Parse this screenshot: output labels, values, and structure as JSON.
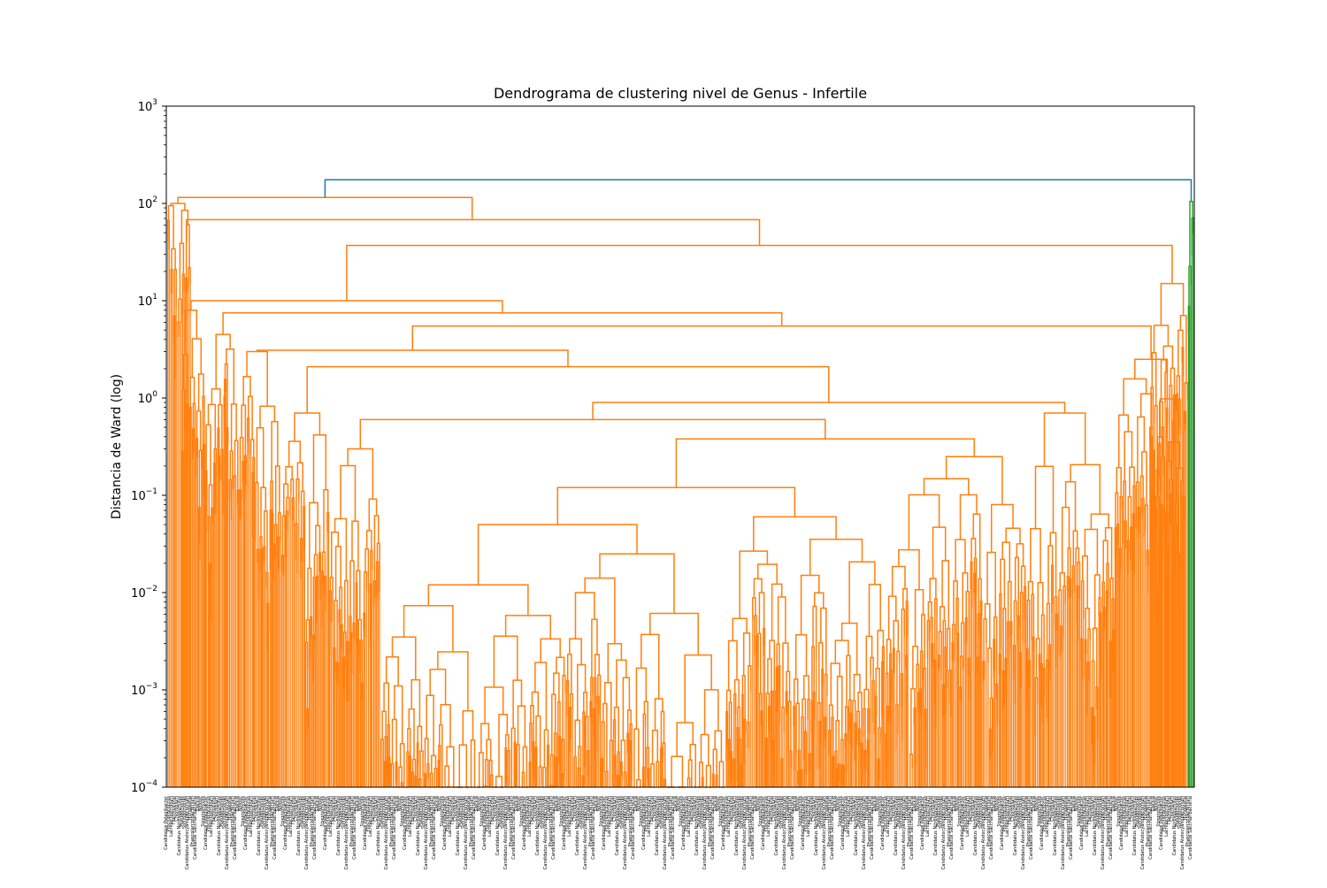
{
  "chart_data": {
    "type": "dendrogram",
    "title": "Dendrograma de clustering nivel de Genus - Infertile",
    "xlabel": "",
    "ylabel": "Distancia de Ward (log)",
    "yscale": "log",
    "ylim": [
      0.0001,
      1000
    ],
    "yticks": [
      {
        "value": 0.0001,
        "base": "10",
        "exp": "−4"
      },
      {
        "value": 0.001,
        "base": "10",
        "exp": "−3"
      },
      {
        "value": 0.01,
        "base": "10",
        "exp": "−2"
      },
      {
        "value": 0.1,
        "base": "10",
        "exp": "−1"
      },
      {
        "value": 1,
        "base": "10",
        "exp": "0"
      },
      {
        "value": 10,
        "base": "10",
        "exp": "1"
      },
      {
        "value": 100,
        "base": "10",
        "exp": "2"
      },
      {
        "value": 1000,
        "base": "10",
        "exp": "3"
      }
    ],
    "grid": false,
    "colors": {
      "main_cluster": "#ff7f0e",
      "second_cluster": "#2ca02c",
      "above_threshold": "#1f77b4"
    },
    "x_tick_labels": [
      "Candidatus Pelagibacter",
      "Prochlorococcus",
      "Lachnoclostridium",
      "Thermosipho",
      "Chlorobium",
      "Candidatus Nitrosopumilus",
      "Pseudomonas",
      "Sphingomonas",
      "Candidatus Atelocyanobacterium",
      "Hungatella",
      "Phascolarctobacterium",
      "Candidatus Saccharibacteria",
      "Slackia",
      "Nostoc",
      "Streptomyces"
    ],
    "root": {
      "height": 175
    },
    "merges": [
      {
        "name": "top-orange-merge",
        "height": 115,
        "cluster": "main_cluster"
      },
      {
        "name": "second-level-merge",
        "height": 68,
        "cluster": "main_cluster"
      },
      {
        "name": "third-level-merge",
        "height": 37,
        "cluster": "main_cluster"
      },
      {
        "name": "green-cluster-top",
        "height": 105,
        "cluster": "second_cluster"
      }
    ]
  }
}
